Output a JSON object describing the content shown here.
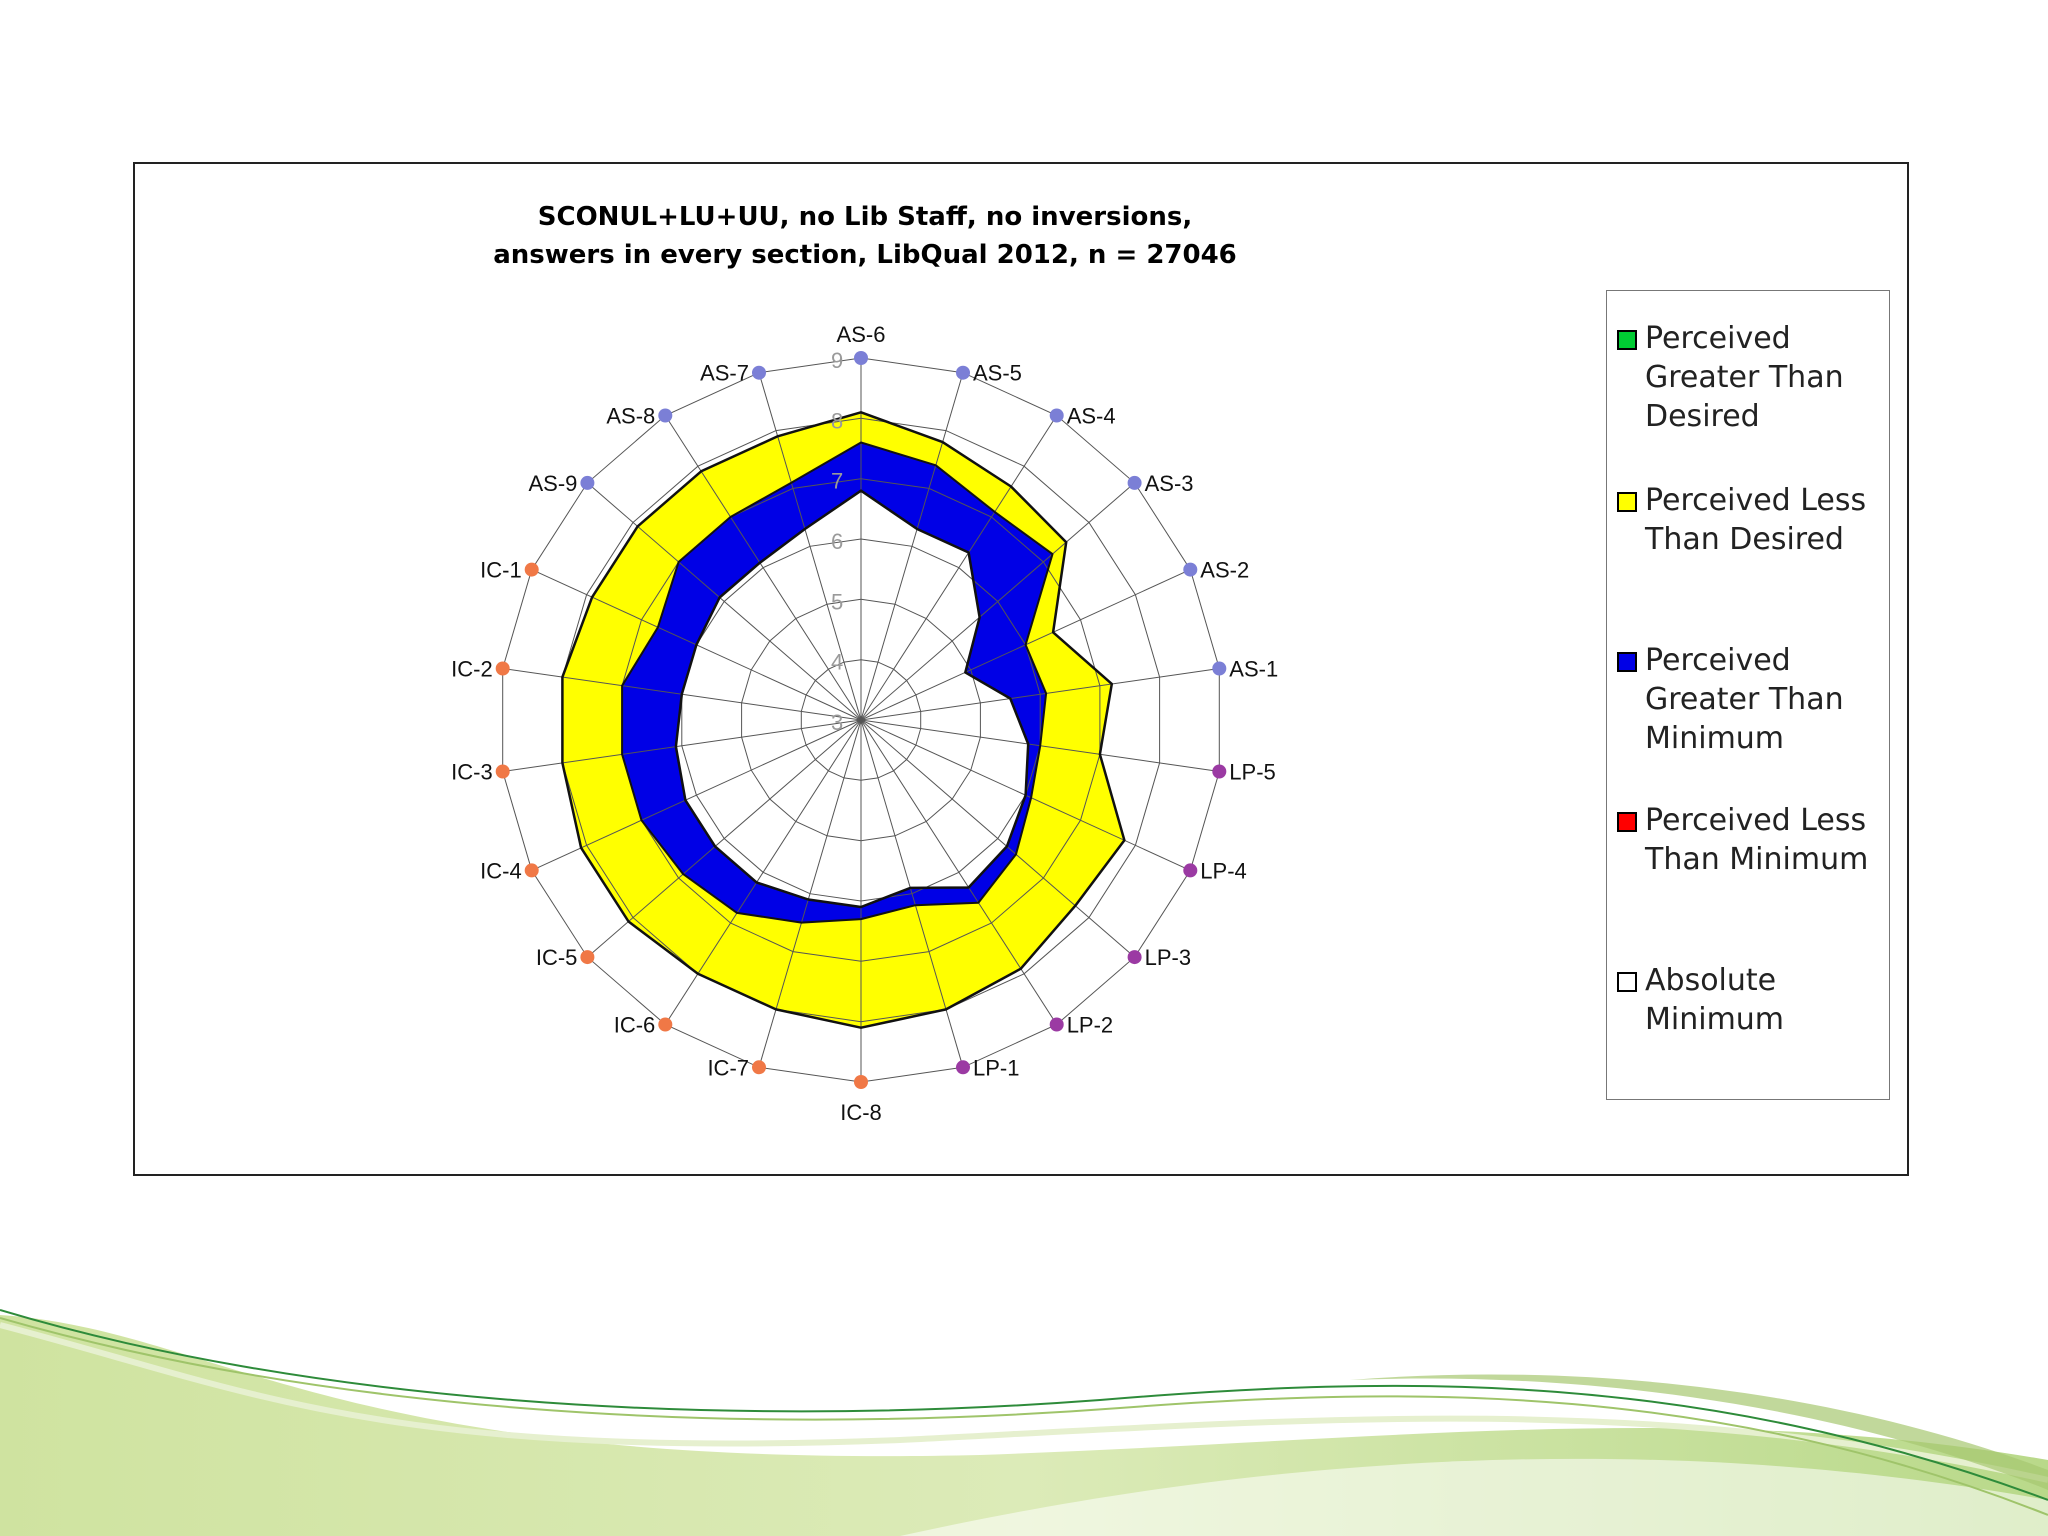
{
  "chart_data": {
    "type": "radar",
    "title": [
      "SCONUL+LU+UU, no Lib Staff, no inversions,",
      "answers in every section, LibQual 2012, n = 27046"
    ],
    "categories": [
      "AS-6",
      "AS-5",
      "AS-4",
      "AS-3",
      "AS-2",
      "AS-1",
      "LP-5",
      "LP-4",
      "LP-3",
      "LP-2",
      "LP-1",
      "IC-8",
      "IC-7",
      "IC-6",
      "IC-5",
      "IC-4",
      "IC-3",
      "IC-2",
      "IC-1",
      "AS-9",
      "AS-8",
      "AS-7"
    ],
    "radial_ticks": [
      "3",
      "4",
      "5",
      "6",
      "7",
      "8",
      "9"
    ],
    "rlim": [
      3,
      9
    ],
    "category_colors": {
      "AS": "#7b7fd6",
      "LP": "#9b3aa3",
      "IC": "#f07846"
    },
    "series": [
      {
        "name": "Desired",
        "values": [
          8.1,
          7.8,
          7.6,
          7.5,
          6.5,
          7.2,
          7.0,
          7.8,
          7.7,
          7.9,
          8.0,
          8.1,
          8.0,
          8.0,
          8.1,
          8.1,
          8.0,
          8.0,
          7.9,
          7.9,
          7.9,
          7.9
        ]
      },
      {
        "name": "Perceived",
        "values": [
          7.6,
          7.4,
          7.1,
          7.2,
          6.0,
          6.1,
          6.0,
          6.1,
          6.4,
          6.6,
          6.2,
          6.3,
          6.5,
          6.8,
          6.9,
          7.0,
          7.0,
          7.0,
          6.7,
          7.0,
          7.0,
          7.1
        ]
      },
      {
        "name": "Minimum",
        "values": [
          6.8,
          6.3,
          6.3,
          5.6,
          4.9,
          5.5,
          5.8,
          6.0,
          6.2,
          6.3,
          5.9,
          6.1,
          6.1,
          6.2,
          6.2,
          6.2,
          6.1,
          6.0,
          6.0,
          6.1,
          6.1,
          6.3
        ]
      }
    ],
    "colors": {
      "perceived_greater_than_desired": "#00cc33",
      "perceived_less_than_desired": "#ffff00",
      "perceived_greater_than_minimum": "#0000e6",
      "perceived_less_than_minimum": "#ff0000",
      "absolute_minimum": "#ffffff"
    },
    "legend": [
      {
        "label": "Perceived Greater Than Desired",
        "color": "#00cc33"
      },
      {
        "label": "Perceived Less Than Desired",
        "color": "#ffff00"
      },
      {
        "label": "Perceived Greater Than Minimum",
        "color": "#0000e6"
      },
      {
        "label": "Perceived Less Than Minimum",
        "color": "#ff0000"
      },
      {
        "label": "Absolute Minimum",
        "color": "#ffffff"
      }
    ],
    "legend_position": "right"
  }
}
